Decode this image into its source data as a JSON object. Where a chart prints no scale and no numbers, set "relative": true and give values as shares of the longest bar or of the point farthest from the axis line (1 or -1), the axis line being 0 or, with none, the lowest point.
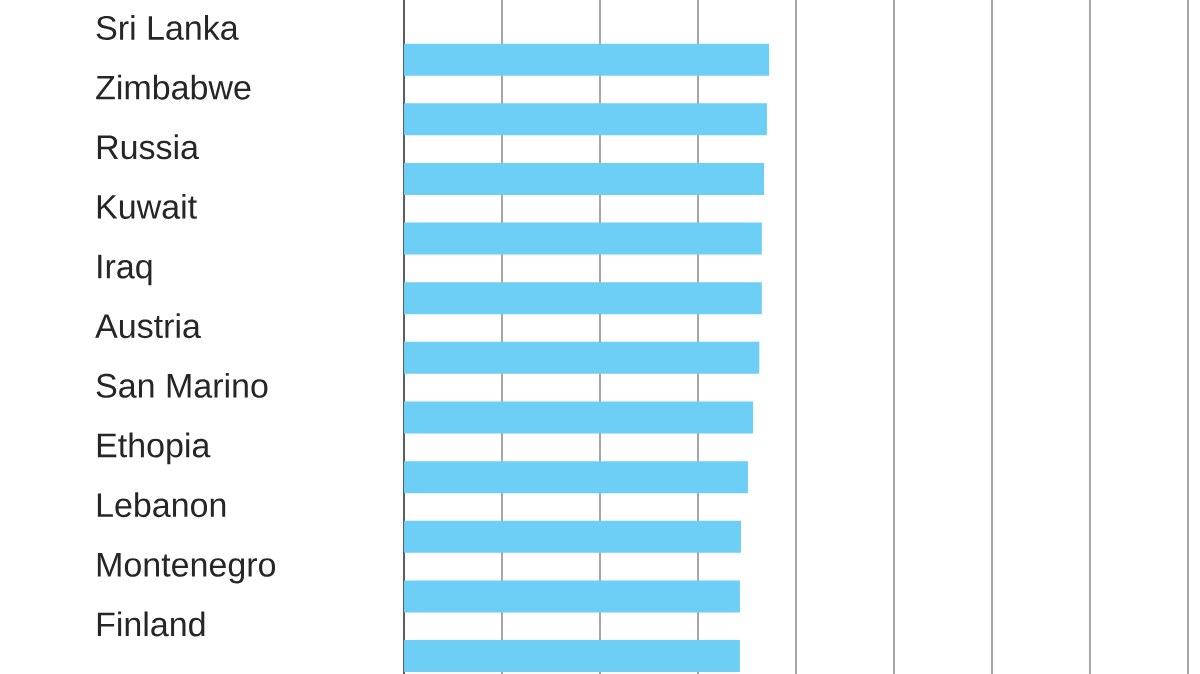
{
  "chart_data": {
    "type": "bar",
    "orientation": "horizontal",
    "relative": true,
    "grid": true,
    "color": "#6dcff6",
    "categories": [
      "Sri Lanka",
      "Zimbabwe",
      "Russia",
      "Kuwait",
      "Iraq",
      "Austria",
      "San Marino",
      "Ethopia",
      "Lebanon",
      "Montenegro",
      "Finland"
    ],
    "values": [
      1,
      0.994,
      0.986,
      0.98,
      0.98,
      0.973,
      0.956,
      0.942,
      0.923,
      0.92,
      0.92
    ]
  }
}
